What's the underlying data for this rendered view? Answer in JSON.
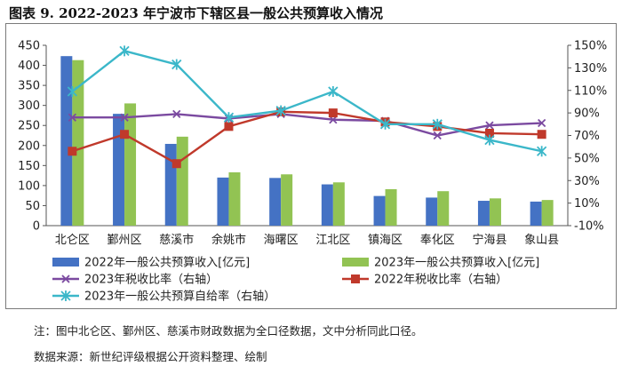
{
  "figure": {
    "title": "图表 9.   2022-2023 年宁波市下辖区县一般公共预算收入情况",
    "note": "注：图中北仑区、鄞州区、慈溪市财政数据为全口径数据，文中分析同此口径。",
    "source": "数据来源：新世纪评级根据公开资料整理、绘制"
  },
  "colors": {
    "bar2022": "#4472c4",
    "bar2023": "#92c353",
    "tax2023": "#7b4aa0",
    "tax2022": "#c0392b",
    "selfsuff2023": "#3bb7c9"
  },
  "chart_data": {
    "type": "bar",
    "categories": [
      "北仑区",
      "鄞州区",
      "慈溪市",
      "余姚市",
      "海曙区",
      "江北区",
      "镇海区",
      "奉化区",
      "宁海县",
      "象山县"
    ],
    "series": [
      {
        "name": "2022年一般公共预算收入[亿元]",
        "type": "bar",
        "axis": "left",
        "values": [
          423,
          279,
          204,
          120,
          119,
          103,
          74,
          70,
          62,
          60
        ]
      },
      {
        "name": "2023年一般公共预算收入[亿元]",
        "type": "bar",
        "axis": "left",
        "values": [
          413,
          305,
          222,
          133,
          128,
          108,
          91,
          86,
          68,
          64
        ]
      },
      {
        "name": "2023年税收比率（右轴）",
        "type": "line",
        "marker": "x",
        "axis": "right",
        "values": [
          86,
          86,
          89,
          85,
          89,
          84,
          83,
          70,
          79,
          81
        ]
      },
      {
        "name": "2022年税收比率（右轴）",
        "type": "line",
        "marker": "square",
        "axis": "right",
        "values": [
          56,
          71,
          45,
          78,
          91,
          90,
          82,
          78,
          72,
          71
        ]
      },
      {
        "name": "2023年一般公共预算自给率（右轴）",
        "type": "line",
        "marker": "star",
        "axis": "right",
        "values": [
          109,
          145,
          133,
          86,
          92,
          109,
          80,
          80,
          66,
          56
        ]
      }
    ],
    "left_axis": {
      "min": 0,
      "max": 450,
      "step": 50,
      "tick_labels": [
        "0",
        "50",
        "100",
        "150",
        "200",
        "250",
        "300",
        "350",
        "400",
        "450"
      ]
    },
    "right_axis": {
      "min": -10,
      "max": 150,
      "step": 20,
      "tick_labels": [
        "-10%",
        "10%",
        "30%",
        "50%",
        "70%",
        "90%",
        "110%",
        "130%",
        "150%"
      ]
    },
    "legend_position": "bottom"
  }
}
